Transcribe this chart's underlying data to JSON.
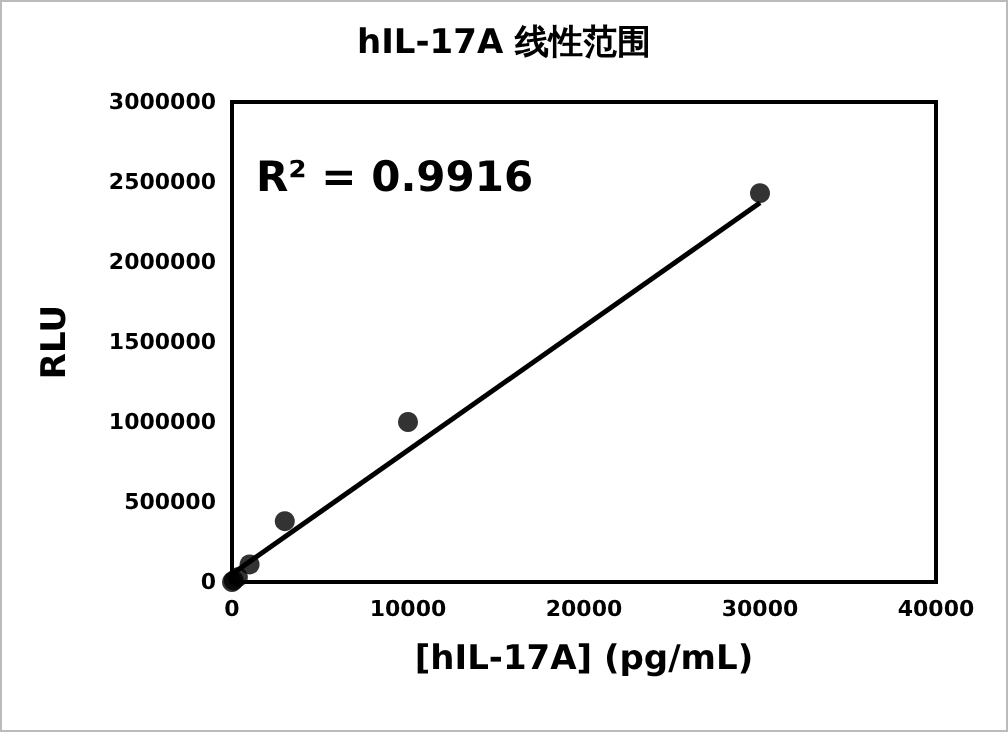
{
  "chart_data": {
    "type": "scatter",
    "title": "hIL-17A 线性范围",
    "xlabel": "[hIL-17A] (pg/mL)",
    "ylabel": "RLU",
    "xlim": [
      0,
      40000
    ],
    "xticks": [
      0,
      10000,
      20000,
      30000,
      40000
    ],
    "ylim": [
      0,
      3000000
    ],
    "yticks": [
      0,
      500000,
      1000000,
      1500000,
      2000000,
      2500000,
      3000000
    ],
    "grid": false,
    "marker": "circle",
    "annotations": [
      "R² = 0.9916"
    ],
    "series": [
      {
        "color": "#000000",
        "x": [
          0,
          100,
          333,
          1000,
          3000,
          10000,
          30000
        ],
        "values": [
          0,
          10000,
          30000,
          110000,
          380000,
          1000000,
          2430000
        ]
      },
      {
        "type": "line",
        "color": "#000000",
        "x": [
          0,
          30000
        ],
        "values": [
          50000,
          2370000
        ],
        "marker": "none",
        "line_style": "solid"
      }
    ]
  }
}
